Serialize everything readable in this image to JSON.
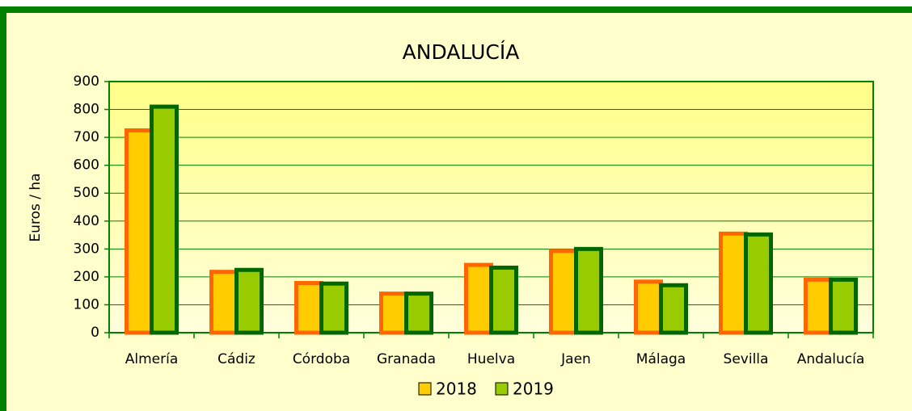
{
  "chart_data": {
    "type": "bar",
    "title": "ANDALUCÍA",
    "y_label": "Euros / ha",
    "categories": [
      "Almería",
      "Cádiz",
      "Córdoba",
      "Granada",
      "Huelva",
      "Jaen",
      "Málaga",
      "Sevilla",
      "Andalucía"
    ],
    "series": [
      {
        "name": "2018",
        "color": "#ffcc00",
        "edge_color": "#ff6600",
        "values": [
          725,
          218,
          178,
          140,
          243,
          293,
          183,
          355,
          190
        ]
      },
      {
        "name": "2019",
        "color": "#99cc00",
        "edge_color": "#006600",
        "values": [
          810,
          225,
          176,
          140,
          233,
          300,
          170,
          352,
          190
        ]
      }
    ],
    "ylim": [
      0,
      900
    ],
    "yticks": [
      0,
      100,
      200,
      300,
      400,
      500,
      600,
      700,
      800,
      900
    ],
    "grid": true,
    "legend": "bottom"
  }
}
